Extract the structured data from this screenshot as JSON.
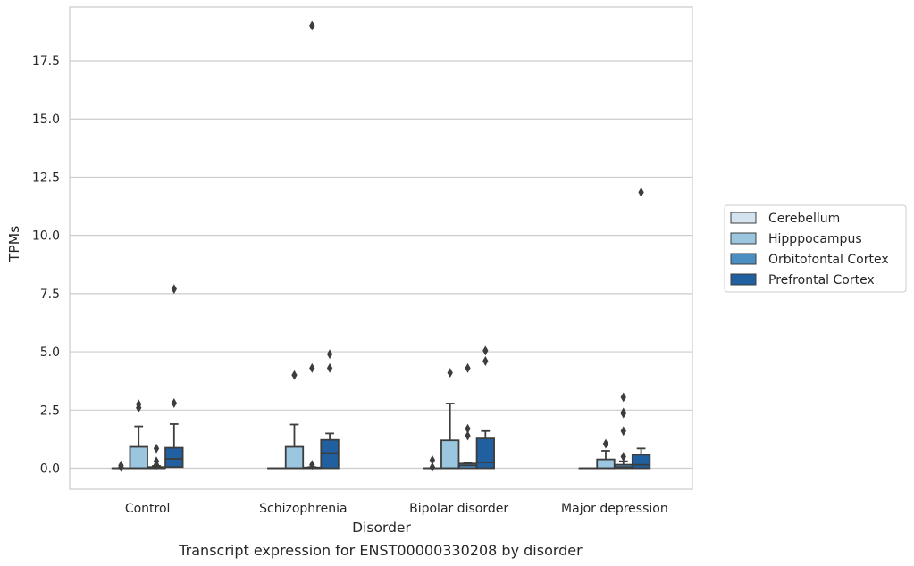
{
  "caption": "Transcript expression for ENST00000330208 by disorder",
  "chart_data": {
    "type": "box",
    "xlabel": "Disorder",
    "ylabel": "TPMs",
    "ylim": [
      -0.9,
      19.8
    ],
    "yticks": [
      0.0,
      2.5,
      5.0,
      7.5,
      10.0,
      12.5,
      15.0,
      17.5
    ],
    "ytick_labels": [
      "0.0",
      "2.5",
      "5.0",
      "7.5",
      "10.0",
      "12.5",
      "15.0",
      "17.5"
    ],
    "grid": true,
    "legend_position": "right",
    "categories": [
      "Control",
      "Schizophrenia",
      "Bipolar disorder",
      "Major depression"
    ],
    "series": [
      {
        "name": "Cerebellum",
        "color": "#d4e3f0",
        "boxes": [
          {
            "min": 0.0,
            "q1": 0.0,
            "median": 0.0,
            "q3": 0.0,
            "max": 0.0,
            "outliers": [
              0.05,
              0.12
            ]
          },
          {
            "min": 0.0,
            "q1": 0.0,
            "median": 0.0,
            "q3": 0.0,
            "max": 0.0,
            "outliers": []
          },
          {
            "min": 0.0,
            "q1": 0.0,
            "median": 0.0,
            "q3": 0.0,
            "max": 0.0,
            "outliers": [
              0.05,
              0.35
            ]
          },
          {
            "min": 0.0,
            "q1": 0.0,
            "median": 0.0,
            "q3": 0.0,
            "max": 0.0,
            "outliers": []
          }
        ]
      },
      {
        "name": "Hipppocampus",
        "color": "#9ac6e0",
        "boxes": [
          {
            "min": 0.0,
            "q1": 0.0,
            "median": 0.0,
            "q3": 0.92,
            "max": 1.8,
            "outliers": [
              2.6,
              2.75
            ]
          },
          {
            "min": 0.0,
            "q1": 0.0,
            "median": 0.0,
            "q3": 0.92,
            "max": 1.88,
            "outliers": [
              4.0
            ]
          },
          {
            "min": 0.0,
            "q1": 0.0,
            "median": 0.0,
            "q3": 1.2,
            "max": 2.78,
            "outliers": [
              4.1
            ]
          },
          {
            "min": 0.0,
            "q1": 0.0,
            "median": 0.0,
            "q3": 0.38,
            "max": 0.75,
            "outliers": [
              1.05
            ]
          }
        ]
      },
      {
        "name": "Orbitofontal Cortex",
        "color": "#4a8fc2",
        "boxes": [
          {
            "min": 0.0,
            "q1": 0.0,
            "median": 0.0,
            "q3": 0.05,
            "max": 0.1,
            "outliers": [
              0.15,
              0.3,
              0.85
            ]
          },
          {
            "min": 0.0,
            "q1": 0.0,
            "median": 0.0,
            "q3": 0.03,
            "max": 0.05,
            "outliers": [
              0.15,
              4.3,
              19.0
            ]
          },
          {
            "min": 0.0,
            "q1": 0.0,
            "median": 0.12,
            "q3": 0.2,
            "max": 0.25,
            "outliers": [
              1.4,
              1.7,
              4.3
            ]
          },
          {
            "min": 0.0,
            "q1": 0.0,
            "median": 0.05,
            "q3": 0.15,
            "max": 0.3,
            "outliers": [
              0.5,
              1.6,
              2.4,
              2.35,
              3.05
            ]
          }
        ]
      },
      {
        "name": "Prefrontal Cortex",
        "color": "#2060a0",
        "boxes": [
          {
            "min": 0.0,
            "q1": 0.05,
            "median": 0.4,
            "q3": 0.88,
            "max": 1.9,
            "outliers": [
              2.8,
              7.7
            ]
          },
          {
            "min": 0.0,
            "q1": 0.0,
            "median": 0.65,
            "q3": 1.22,
            "max": 1.5,
            "outliers": [
              4.3,
              4.9
            ]
          },
          {
            "min": 0.0,
            "q1": 0.0,
            "median": 0.25,
            "q3": 1.28,
            "max": 1.6,
            "outliers": [
              4.6,
              5.05
            ]
          },
          {
            "min": 0.0,
            "q1": 0.0,
            "median": 0.15,
            "q3": 0.58,
            "max": 0.85,
            "outliers": [
              11.85
            ]
          }
        ]
      }
    ]
  }
}
